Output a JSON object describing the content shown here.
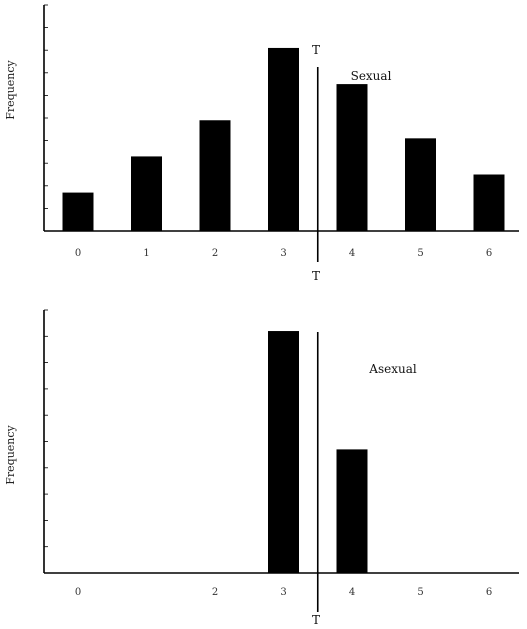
{
  "chart_data": [
    {
      "type": "bar",
      "panel_label": "Sexual",
      "ylabel": "Frequency",
      "threshold_label": "T",
      "threshold_x": 3.5,
      "categories": [
        "0",
        "1",
        "2",
        "3",
        "4",
        "5",
        "6"
      ],
      "tick_labels": [
        "0",
        "1",
        "2",
        "3",
        "4",
        "5",
        "6"
      ],
      "values": [
        0.17,
        0.33,
        0.49,
        0.81,
        0.65,
        0.41,
        0.25
      ],
      "ylim": [
        0,
        1.0
      ]
    },
    {
      "type": "bar",
      "panel_label": "Asexual",
      "ylabel": "Frequency",
      "threshold_label": "T",
      "threshold_x": 3.5,
      "categories": [
        "0",
        "1",
        "2",
        "3",
        "4",
        "5",
        "6"
      ],
      "tick_labels": [
        "0",
        "",
        "2",
        "3",
        "4",
        "5",
        "6"
      ],
      "values": [
        0,
        0,
        0,
        0.92,
        0.47,
        0,
        0
      ],
      "ylim": [
        0,
        1.0
      ]
    }
  ]
}
